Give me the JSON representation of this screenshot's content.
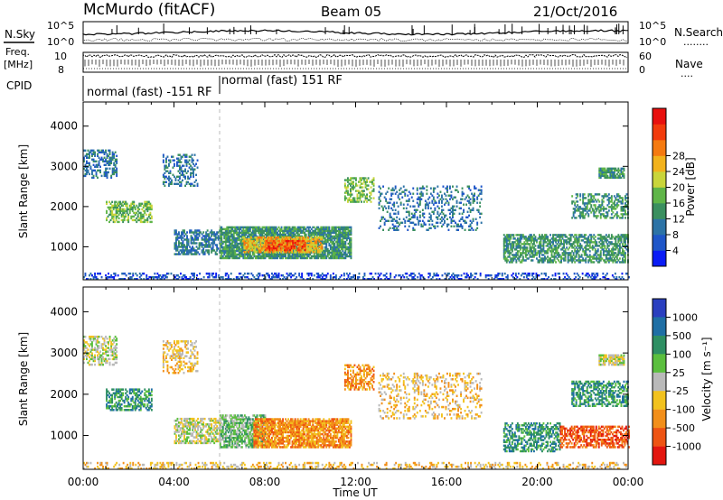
{
  "header": {
    "title": "McMurdo (fitACF)",
    "beam": "Beam 05",
    "date": "21/Oct/2016"
  },
  "top_panels": {
    "nsky_label": "N.Sky",
    "nsearch_label": "N.Search",
    "nsearch_dots": "........",
    "noise_ticks": [
      "10^5",
      "10^0"
    ],
    "freq_label_1": "Freq.",
    "freq_label_2": "[MHz]",
    "freq_ticks": [
      "10",
      "8"
    ],
    "nave_label": "Nave",
    "nave_dots": "....",
    "nave_ticks": [
      "60",
      "0"
    ],
    "cpid_label": "CPID",
    "cpid_segments": [
      {
        "label": "normal (fast) -151 RF",
        "start_hour": 0.0,
        "end_hour": 6.0
      },
      {
        "label": "normal (fast) 151 RF",
        "start_hour": 6.0,
        "end_hour": 24.0
      }
    ]
  },
  "chart_data": [
    {
      "type": "heatmap",
      "name": "power",
      "ylabel": "Slant Range [km]",
      "xlabel": "",
      "y_ticks": [
        "1000",
        "2000",
        "3000",
        "4000"
      ],
      "ylim": [
        180,
        4600
      ],
      "xlim": [
        0,
        24
      ],
      "colorbar": {
        "label": "Power [dB]",
        "ticks": [
          "4",
          "8",
          "12",
          "16",
          "20",
          "24",
          "28"
        ],
        "colors": [
          "#0a1cf5",
          "#1f56c8",
          "#2c73a6",
          "#3a8f5f",
          "#5fb548",
          "#c9d53a",
          "#f2b21c",
          "#f57a10",
          "#f23b0c",
          "#e8100e"
        ]
      },
      "regions": [
        {
          "t0": 0.0,
          "t1": 1.5,
          "r0": 2700,
          "r1": 3400,
          "level": 2,
          "density": 0.45
        },
        {
          "t0": 1.0,
          "t1": 3.0,
          "r0": 1600,
          "r1": 2100,
          "level": 4,
          "density": 0.55
        },
        {
          "t0": 3.5,
          "t1": 5.0,
          "r0": 2500,
          "r1": 3300,
          "level": 2,
          "density": 0.35
        },
        {
          "t0": 4.0,
          "t1": 6.0,
          "r0": 800,
          "r1": 1400,
          "level": 2,
          "density": 0.6
        },
        {
          "t0": 6.0,
          "t1": 11.8,
          "r0": 700,
          "r1": 1500,
          "level": 3,
          "density": 0.85
        },
        {
          "t0": 7.0,
          "t1": 10.5,
          "r0": 850,
          "r1": 1250,
          "level": 6,
          "density": 0.7
        },
        {
          "t0": 8.0,
          "t1": 9.8,
          "r0": 900,
          "r1": 1150,
          "level": 8,
          "density": 0.6
        },
        {
          "t0": 11.5,
          "t1": 12.8,
          "r0": 2100,
          "r1": 2700,
          "level": 4,
          "density": 0.5
        },
        {
          "t0": 13.0,
          "t1": 17.5,
          "r0": 1400,
          "r1": 2500,
          "level": 2,
          "density": 0.25
        },
        {
          "t0": 18.5,
          "t1": 24.0,
          "r0": 600,
          "r1": 1300,
          "level": 3,
          "density": 0.6
        },
        {
          "t0": 21.5,
          "t1": 24.0,
          "r0": 1700,
          "r1": 2300,
          "level": 3,
          "density": 0.5
        },
        {
          "t0": 22.7,
          "t1": 23.8,
          "r0": 2700,
          "r1": 2950,
          "level": 3,
          "density": 0.8
        },
        {
          "t0": 0.0,
          "t1": 24.0,
          "r0": 180,
          "r1": 320,
          "level": 1,
          "density": 0.35
        }
      ]
    },
    {
      "type": "heatmap",
      "name": "velocity",
      "ylabel": "Slant Range [km]",
      "xlabel": "Time UT",
      "x_ticks": [
        "00:00",
        "04:00",
        "08:00",
        "12:00",
        "16:00",
        "20:00",
        "00:00"
      ],
      "y_ticks": [
        "1000",
        "2000",
        "3000",
        "4000"
      ],
      "ylim": [
        180,
        4600
      ],
      "xlim": [
        0,
        24
      ],
      "colorbar": {
        "label": "Velocity [m s⁻¹]",
        "ticks": [
          "1000",
          "500",
          "100",
          "25",
          "-25",
          "-100",
          "-500",
          "-1000"
        ],
        "colors": [
          "#2a3fbf",
          "#1f6fa5",
          "#2e8f63",
          "#5bbf3e",
          "#b9b9b9",
          "#f2c21e",
          "#f28f1a",
          "#ee5413",
          "#e3160f"
        ]
      },
      "regions": [
        {
          "t0": 0.0,
          "t1": 1.5,
          "r0": 2700,
          "r1": 3400,
          "level": 4,
          "density": 0.45
        },
        {
          "t0": 1.0,
          "t1": 3.0,
          "r0": 1600,
          "r1": 2100,
          "level": 2,
          "density": 0.55
        },
        {
          "t0": 3.5,
          "t1": 5.0,
          "r0": 2500,
          "r1": 3300,
          "level": 5,
          "density": 0.35
        },
        {
          "t0": 4.0,
          "t1": 6.0,
          "r0": 800,
          "r1": 1400,
          "level": 4,
          "density": 0.6
        },
        {
          "t0": 6.0,
          "t1": 8.0,
          "r0": 700,
          "r1": 1500,
          "level": 3,
          "density": 0.7
        },
        {
          "t0": 7.5,
          "t1": 11.8,
          "r0": 700,
          "r1": 1400,
          "level": 6,
          "density": 0.8
        },
        {
          "t0": 11.5,
          "t1": 12.8,
          "r0": 2100,
          "r1": 2700,
          "level": 6,
          "density": 0.5
        },
        {
          "t0": 13.0,
          "t1": 17.5,
          "r0": 1400,
          "r1": 2500,
          "level": 5,
          "density": 0.25
        },
        {
          "t0": 18.5,
          "t1": 21.0,
          "r0": 600,
          "r1": 1300,
          "level": 2,
          "density": 0.5
        },
        {
          "t0": 21.0,
          "t1": 24.0,
          "r0": 700,
          "r1": 1200,
          "level": 7,
          "density": 0.6
        },
        {
          "t0": 21.5,
          "t1": 24.0,
          "r0": 1700,
          "r1": 2300,
          "level": 2,
          "density": 0.5
        },
        {
          "t0": 22.7,
          "t1": 23.8,
          "r0": 2700,
          "r1": 2950,
          "level": 4,
          "density": 0.8
        },
        {
          "t0": 0.0,
          "t1": 24.0,
          "r0": 180,
          "r1": 320,
          "level": 5,
          "density": 0.3
        }
      ]
    }
  ]
}
